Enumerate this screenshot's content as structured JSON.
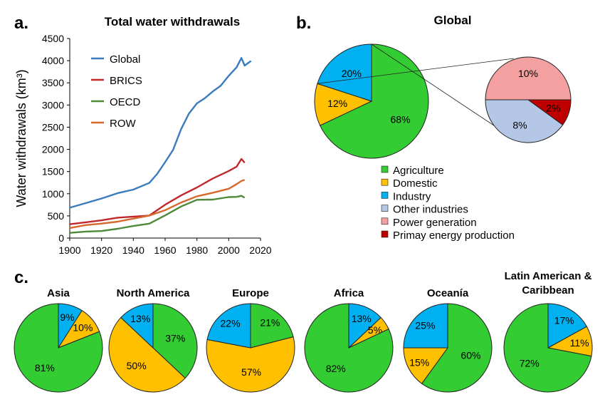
{
  "panels": {
    "a": "a.",
    "b": "b.",
    "c": "c."
  },
  "chart_data": [
    {
      "type": "line",
      "title": "Total water withdrawals",
      "xlabel": "",
      "ylabel": "Water withdrawals (km³)",
      "xlim": [
        1900,
        2020
      ],
      "ylim": [
        0,
        4500
      ],
      "x_ticks": [
        1900,
        1920,
        1940,
        1960,
        1980,
        2000,
        2020
      ],
      "y_ticks": [
        0,
        500,
        1000,
        1500,
        2000,
        2500,
        3000,
        3500,
        4000,
        4500
      ],
      "legend_position": "top-left",
      "series": [
        {
          "name": "Global",
          "color": "#3a7bbf",
          "points": [
            [
              1900,
              680
            ],
            [
              1910,
              800
            ],
            [
              1920,
              890
            ],
            [
              1930,
              1000
            ],
            [
              1940,
              1100
            ],
            [
              1950,
              1250
            ],
            [
              1955,
              1450
            ],
            [
              1960,
              1700
            ],
            [
              1965,
              2000
            ],
            [
              1970,
              2450
            ],
            [
              1975,
              2800
            ],
            [
              1980,
              3050
            ],
            [
              1985,
              3150
            ],
            [
              1990,
              3300
            ],
            [
              1995,
              3450
            ],
            [
              2000,
              3650
            ],
            [
              2005,
              3850
            ],
            [
              2008,
              4050
            ],
            [
              2010,
              3900
            ],
            [
              2014,
              4000
            ]
          ]
        },
        {
          "name": "BRICS",
          "color": "#c0282d",
          "points": [
            [
              1900,
              300
            ],
            [
              1910,
              360
            ],
            [
              1920,
              410
            ],
            [
              1930,
              450
            ],
            [
              1940,
              480
            ],
            [
              1950,
              520
            ],
            [
              1960,
              750
            ],
            [
              1970,
              950
            ],
            [
              1980,
              1150
            ],
            [
              1990,
              1350
            ],
            [
              2000,
              1500
            ],
            [
              2005,
              1620
            ],
            [
              2008,
              1780
            ],
            [
              2010,
              1700
            ]
          ]
        },
        {
          "name": "OECD",
          "color": "#4e8a3a",
          "points": [
            [
              1900,
              110
            ],
            [
              1910,
              140
            ],
            [
              1920,
              170
            ],
            [
              1930,
              210
            ],
            [
              1940,
              260
            ],
            [
              1950,
              330
            ],
            [
              1960,
              520
            ],
            [
              1970,
              700
            ],
            [
              1980,
              860
            ],
            [
              1990,
              880
            ],
            [
              2000,
              920
            ],
            [
              2005,
              940
            ],
            [
              2008,
              960
            ],
            [
              2010,
              900
            ]
          ]
        },
        {
          "name": "ROW",
          "color": "#d4692b",
          "points": [
            [
              1900,
              230
            ],
            [
              1910,
              280
            ],
            [
              1920,
              330
            ],
            [
              1930,
              380
            ],
            [
              1940,
              430
            ],
            [
              1950,
              500
            ],
            [
              1960,
              640
            ],
            [
              1970,
              800
            ],
            [
              1980,
              930
            ],
            [
              1990,
              1030
            ],
            [
              2000,
              1120
            ],
            [
              2005,
              1220
            ],
            [
              2008,
              1300
            ],
            [
              2010,
              1300
            ]
          ]
        }
      ]
    },
    {
      "type": "pie",
      "title": "Global",
      "slices": [
        {
          "label": "Agriculture",
          "value": 68,
          "text": "68%",
          "color": "#33cc33"
        },
        {
          "label": "Domestic",
          "value": 12,
          "text": "12%",
          "color": "#ffc000"
        },
        {
          "label": "Industry",
          "value": 20,
          "text": "20%",
          "color": "#00b0f0"
        }
      ],
      "breakdown": {
        "of": "Industry",
        "slices": [
          {
            "label": "Other industries",
            "value": 8,
            "text": "8%",
            "color": "#b4c7e7"
          },
          {
            "label": "Power generation",
            "value": 10,
            "text": "10%",
            "color": "#f4a0a0"
          },
          {
            "label": "Primay energy production",
            "value": 2,
            "text": "2%",
            "color": "#c00000"
          }
        ]
      },
      "legend": [
        {
          "label": "Agriculture",
          "color": "#33cc33"
        },
        {
          "label": "Domestic",
          "color": "#ffc000"
        },
        {
          "label": "Industry",
          "color": "#00b0f0"
        },
        {
          "label": "Other industries",
          "color": "#b4c7e7"
        },
        {
          "label": "Power generation",
          "color": "#f4a0a0"
        },
        {
          "label": "Primay energy production",
          "color": "#c00000"
        }
      ]
    },
    {
      "type": "pie",
      "title": "Asia",
      "slices": [
        {
          "label": "Industry",
          "value": 9,
          "text": "9%",
          "color": "#00b0f0"
        },
        {
          "label": "Domestic",
          "value": 10,
          "text": "10%",
          "color": "#ffc000"
        },
        {
          "label": "Agriculture",
          "value": 81,
          "text": "81%",
          "color": "#33cc33"
        }
      ]
    },
    {
      "type": "pie",
      "title": "North America",
      "slices": [
        {
          "label": "Agriculture",
          "value": 37,
          "text": "37%",
          "color": "#33cc33"
        },
        {
          "label": "Domestic",
          "value": 50,
          "text": "50%",
          "color": "#ffc000"
        },
        {
          "label": "Industry",
          "value": 13,
          "text": "13%",
          "color": "#00b0f0"
        }
      ]
    },
    {
      "type": "pie",
      "title": "Europe",
      "slices": [
        {
          "label": "Agriculture",
          "value": 21,
          "text": "21%",
          "color": "#33cc33"
        },
        {
          "label": "Domestic",
          "value": 57,
          "text": "57%",
          "color": "#ffc000"
        },
        {
          "label": "Industry",
          "value": 22,
          "text": "22%",
          "color": "#00b0f0"
        }
      ]
    },
    {
      "type": "pie",
      "title": "Africa",
      "slices": [
        {
          "label": "Industry",
          "value": 13,
          "text": "13%",
          "color": "#00b0f0"
        },
        {
          "label": "Domestic",
          "value": 5,
          "text": "5%",
          "color": "#ffc000"
        },
        {
          "label": "Agriculture",
          "value": 82,
          "text": "82%",
          "color": "#33cc33"
        }
      ]
    },
    {
      "type": "pie",
      "title": "Oceanía",
      "slices": [
        {
          "label": "Agriculture",
          "value": 60,
          "text": "60%",
          "color": "#33cc33"
        },
        {
          "label": "Domestic",
          "value": 15,
          "text": "15%",
          "color": "#ffc000"
        },
        {
          "label": "Industry",
          "value": 25,
          "text": "25%",
          "color": "#00b0f0"
        }
      ]
    },
    {
      "type": "pie",
      "title": "Latin American & Caribbean",
      "title_lines": [
        "Latin American &",
        "Caribbean"
      ],
      "slices": [
        {
          "label": "Industry",
          "value": 17,
          "text": "17%",
          "color": "#00b0f0"
        },
        {
          "label": "Domestic",
          "value": 11,
          "text": "11%",
          "color": "#ffc000"
        },
        {
          "label": "Agriculture",
          "value": 72,
          "text": "72%",
          "color": "#33cc33"
        }
      ]
    }
  ]
}
